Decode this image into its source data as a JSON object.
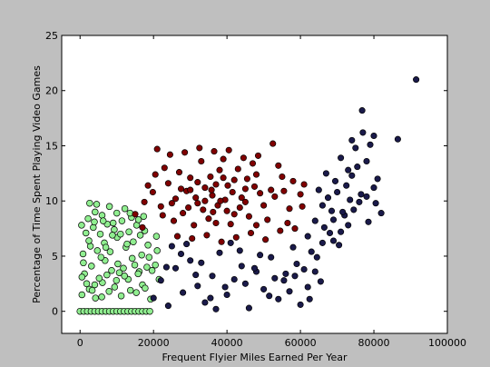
{
  "chart_data": {
    "type": "scatter",
    "title": "",
    "xlabel": "Frequent Flyier Miles Earned Per Year",
    "ylabel": "Percentage of Time Spent Playing Video Games",
    "xlim": [
      -5000,
      100000
    ],
    "ylim": [
      -2,
      25
    ],
    "x_ticks": [
      "0",
      "20000",
      "40000",
      "60000",
      "80000",
      "100000"
    ],
    "y_ticks": [
      "0",
      "5",
      "10",
      "15",
      "20",
      "25"
    ],
    "grid": false,
    "legend": "none",
    "series": [
      {
        "color": "#90ee90",
        "points": [
          [
            0,
            0
          ],
          [
            1000,
            0
          ],
          [
            2000,
            0
          ],
          [
            3000,
            0
          ],
          [
            4000,
            0
          ],
          [
            5000,
            0
          ],
          [
            6000,
            0
          ],
          [
            7000,
            0
          ],
          [
            8000,
            0
          ],
          [
            9000,
            0
          ],
          [
            10000,
            0
          ],
          [
            11000,
            0
          ],
          [
            12000,
            0
          ],
          [
            13000,
            0
          ],
          [
            14000,
            0
          ],
          [
            15000,
            0
          ],
          [
            16000,
            0
          ],
          [
            17000,
            0
          ],
          [
            18000,
            0
          ],
          [
            19000,
            0
          ],
          [
            500,
            1.5
          ],
          [
            2500,
            2.0
          ],
          [
            4200,
            1.2
          ],
          [
            6100,
            2.6
          ],
          [
            7900,
            1.8
          ],
          [
            9400,
            2.2
          ],
          [
            11200,
            1.4
          ],
          [
            13100,
            2.9
          ],
          [
            15300,
            1.7
          ],
          [
            17000,
            2.4
          ],
          [
            19200,
            1.1
          ],
          [
            1200,
            3.4
          ],
          [
            3100,
            4.1
          ],
          [
            5200,
            3.0
          ],
          [
            6800,
            4.6
          ],
          [
            8600,
            3.7
          ],
          [
            10300,
            4.3
          ],
          [
            12100,
            3.2
          ],
          [
            14200,
            4.8
          ],
          [
            16100,
            3.6
          ],
          [
            18200,
            4.0
          ],
          [
            800,
            5.2
          ],
          [
            2800,
            5.9
          ],
          [
            4700,
            5.5
          ],
          [
            6600,
            6.2
          ],
          [
            8200,
            5.4
          ],
          [
            10100,
            6.7
          ],
          [
            12500,
            5.8
          ],
          [
            14500,
            6.3
          ],
          [
            16800,
            5.1
          ],
          [
            18500,
            6.0
          ],
          [
            1600,
            7.1
          ],
          [
            3600,
            7.6
          ],
          [
            5500,
            7.0
          ],
          [
            7400,
            7.9
          ],
          [
            9300,
            7.4
          ],
          [
            11400,
            8.2
          ],
          [
            13300,
            7.2
          ],
          [
            15400,
            7.8
          ],
          [
            17600,
            7.3
          ],
          [
            2200,
            8.4
          ],
          [
            4100,
            9.0
          ],
          [
            6000,
            8.7
          ],
          [
            8000,
            9.5
          ],
          [
            10000,
            8.9
          ],
          [
            12200,
            9.3
          ],
          [
            14000,
            8.5
          ],
          [
            400,
            7.8
          ],
          [
            2600,
            9.8
          ],
          [
            4500,
            9.7
          ],
          [
            500,
            3.1
          ],
          [
            1800,
            2.5
          ],
          [
            3300,
            1.9
          ],
          [
            5900,
            1.3
          ],
          [
            7300,
            3.3
          ],
          [
            9900,
            2.8
          ],
          [
            11800,
            3.9
          ],
          [
            13700,
            1.9
          ],
          [
            15800,
            3.4
          ],
          [
            17700,
            2.1
          ],
          [
            19600,
            3.7
          ],
          [
            20500,
            4.2
          ],
          [
            21000,
            5.5
          ],
          [
            20800,
            6.8
          ],
          [
            21500,
            2.9
          ],
          [
            900,
            4.4
          ],
          [
            2400,
            6.4
          ],
          [
            4000,
            2.4
          ],
          [
            5700,
            4.9
          ],
          [
            7000,
            5.8
          ],
          [
            8800,
            6.9
          ],
          [
            10700,
            3.5
          ],
          [
            12800,
            6.1
          ],
          [
            14900,
            4.2
          ],
          [
            16400,
            6.9
          ],
          [
            18800,
            4.9
          ],
          [
            3900,
            8.1
          ],
          [
            6300,
            8.2
          ],
          [
            9000,
            8.0
          ],
          [
            11000,
            7.0
          ],
          [
            13600,
            8.9
          ],
          [
            15900,
            8.3
          ],
          [
            17300,
            8.6
          ]
        ]
      },
      {
        "color": "#800000",
        "points": [
          [
            15000,
            8.8
          ],
          [
            17500,
            9.9
          ],
          [
            19800,
            10.8
          ],
          [
            22000,
            9.5
          ],
          [
            24000,
            11.6
          ],
          [
            26000,
            10.2
          ],
          [
            28000,
            8.9
          ],
          [
            30000,
            12.1
          ],
          [
            32000,
            9.8
          ],
          [
            34000,
            11.2
          ],
          [
            36000,
            10.5
          ],
          [
            38000,
            12.8
          ],
          [
            40000,
            9.1
          ],
          [
            42000,
            11.9
          ],
          [
            44000,
            10.3
          ],
          [
            46000,
            8.6
          ],
          [
            48000,
            12.4
          ],
          [
            50000,
            9.6
          ],
          [
            52000,
            11.0
          ],
          [
            54000,
            13.2
          ],
          [
            23000,
            13.0
          ],
          [
            25500,
            8.2
          ],
          [
            27000,
            12.6
          ],
          [
            29000,
            10.9
          ],
          [
            31000,
            7.8
          ],
          [
            33000,
            13.6
          ],
          [
            35000,
            8.4
          ],
          [
            37000,
            11.5
          ],
          [
            39000,
            13.8
          ],
          [
            41000,
            7.9
          ],
          [
            43000,
            12.9
          ],
          [
            45000,
            9.9
          ],
          [
            47000,
            13.4
          ],
          [
            49000,
            10.7
          ],
          [
            51000,
            8.3
          ],
          [
            53000,
            10.4
          ],
          [
            55000,
            12.2
          ],
          [
            57000,
            9.3
          ],
          [
            58000,
            11.8
          ],
          [
            60000,
            10.6
          ],
          [
            21000,
            14.7
          ],
          [
            24500,
            14.2
          ],
          [
            28500,
            14.4
          ],
          [
            32500,
            14.8
          ],
          [
            36500,
            14.5
          ],
          [
            40500,
            14.6
          ],
          [
            44500,
            13.9
          ],
          [
            48500,
            14.1
          ],
          [
            52500,
            15.2
          ],
          [
            26500,
            6.8
          ],
          [
            30500,
            6.6
          ],
          [
            34500,
            6.9
          ],
          [
            38500,
            6.3
          ],
          [
            42500,
            6.7
          ],
          [
            46500,
            7.1
          ],
          [
            50500,
            6.5
          ],
          [
            54500,
            7.3
          ],
          [
            56500,
            8.0
          ],
          [
            58500,
            7.5
          ],
          [
            60500,
            9.5
          ],
          [
            17000,
            7.6
          ],
          [
            18500,
            11.4
          ],
          [
            20500,
            12.4
          ],
          [
            22500,
            8.7
          ],
          [
            27500,
            11.1
          ],
          [
            31500,
            10.3
          ],
          [
            35500,
            12.2
          ],
          [
            39500,
            10.1
          ],
          [
            43500,
            9.4
          ],
          [
            47500,
            11.3
          ],
          [
            33500,
            9.2
          ],
          [
            37500,
            9.6
          ],
          [
            41500,
            10.8
          ],
          [
            45500,
            12.0
          ],
          [
            35800,
            11.0
          ],
          [
            38200,
            10.0
          ],
          [
            36200,
            9.0
          ],
          [
            40200,
            11.4
          ],
          [
            39000,
            12.1
          ],
          [
            34000,
            10.0
          ],
          [
            32000,
            11.7
          ],
          [
            29500,
            9.4
          ],
          [
            25000,
            9.8
          ],
          [
            30000,
            11.0
          ],
          [
            37000,
            8.0
          ],
          [
            42000,
            8.8
          ],
          [
            45000,
            11.1
          ],
          [
            48000,
            7.8
          ],
          [
            55500,
            10.9
          ],
          [
            61000,
            11.5
          ]
        ]
      },
      {
        "color": "#1a1a4a",
        "points": [
          [
            20000,
            1.2
          ],
          [
            22000,
            2.8
          ],
          [
            24000,
            0.5
          ],
          [
            26000,
            3.9
          ],
          [
            28000,
            1.7
          ],
          [
            30000,
            4.6
          ],
          [
            32000,
            2.3
          ],
          [
            34000,
            0.8
          ],
          [
            36000,
            3.2
          ],
          [
            38000,
            5.3
          ],
          [
            40000,
            1.5
          ],
          [
            42000,
            2.9
          ],
          [
            44000,
            4.1
          ],
          [
            46000,
            0.3
          ],
          [
            48000,
            3.6
          ],
          [
            50000,
            2.0
          ],
          [
            52000,
            4.9
          ],
          [
            54000,
            1.1
          ],
          [
            56000,
            3.4
          ],
          [
            58000,
            5.8
          ],
          [
            60000,
            0.6
          ],
          [
            62000,
            6.8
          ],
          [
            64000,
            8.2
          ],
          [
            66000,
            9.6
          ],
          [
            68000,
            7.1
          ],
          [
            70000,
            10.8
          ],
          [
            72000,
            8.7
          ],
          [
            74000,
            12.3
          ],
          [
            76000,
            9.9
          ],
          [
            78000,
            13.6
          ],
          [
            80000,
            11.2
          ],
          [
            82000,
            8.9
          ],
          [
            63000,
            5.4
          ],
          [
            65000,
            11.0
          ],
          [
            67000,
            12.5
          ],
          [
            69000,
            6.4
          ],
          [
            71000,
            13.9
          ],
          [
            73000,
            7.8
          ],
          [
            75000,
            14.8
          ],
          [
            77000,
            16.2
          ],
          [
            79000,
            15.1
          ],
          [
            81000,
            12.0
          ],
          [
            61000,
            3.8
          ],
          [
            64500,
            4.9
          ],
          [
            66500,
            7.6
          ],
          [
            68500,
            9.1
          ],
          [
            70500,
            6.0
          ],
          [
            72500,
            11.4
          ],
          [
            74500,
            9.2
          ],
          [
            76500,
            10.6
          ],
          [
            78500,
            8.1
          ],
          [
            80500,
            9.8
          ],
          [
            25000,
            5.9
          ],
          [
            29000,
            6.1
          ],
          [
            33000,
            4.4
          ],
          [
            37000,
            0.2
          ],
          [
            41000,
            6.2
          ],
          [
            45000,
            2.5
          ],
          [
            49000,
            5.1
          ],
          [
            53000,
            3.0
          ],
          [
            57000,
            1.8
          ],
          [
            59000,
            4.3
          ],
          [
            67500,
            10.3
          ],
          [
            69500,
            11.8
          ],
          [
            71500,
            9.0
          ],
          [
            73500,
            10.1
          ],
          [
            75500,
            13.1
          ],
          [
            76800,
            18.2
          ],
          [
            86500,
            15.6
          ],
          [
            91500,
            21.0
          ],
          [
            62500,
            1.1
          ],
          [
            65500,
            2.7
          ],
          [
            23500,
            4.0
          ],
          [
            27500,
            5.2
          ],
          [
            31500,
            3.3
          ],
          [
            35500,
            1.2
          ],
          [
            39500,
            2.2
          ],
          [
            43500,
            5.5
          ],
          [
            47500,
            3.9
          ],
          [
            51500,
            1.4
          ],
          [
            55500,
            2.8
          ],
          [
            58500,
            3.2
          ],
          [
            69000,
            8.3
          ],
          [
            71000,
            7.2
          ],
          [
            73000,
            12.8
          ],
          [
            66000,
            6.2
          ],
          [
            64000,
            3.6
          ],
          [
            62000,
            2.2
          ],
          [
            80000,
            15.9
          ],
          [
            74000,
            15.5
          ],
          [
            78000,
            10.4
          ]
        ]
      }
    ]
  }
}
